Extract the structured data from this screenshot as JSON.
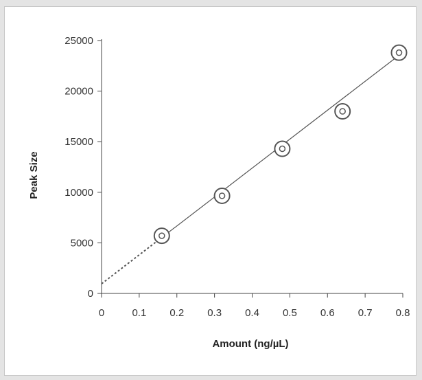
{
  "chart_data": {
    "type": "scatter",
    "title": "",
    "xlabel": "Amount (ng/µL)",
    "ylabel": "Peak Size",
    "xlim": [
      0,
      0.8
    ],
    "ylim": [
      0,
      25000
    ],
    "x_ticks": [
      "0",
      "0.1",
      "0.2",
      "0.3",
      "0.4",
      "0.5",
      "0.6",
      "0.7",
      "0.8"
    ],
    "y_ticks": [
      "0",
      "5000",
      "10000",
      "15000",
      "20000",
      "25000"
    ],
    "grid": false,
    "legend": "none",
    "series": [
      {
        "points": [
          {
            "x": 0.16,
            "y": 5700
          },
          {
            "x": 0.32,
            "y": 9650
          },
          {
            "x": 0.48,
            "y": 14300
          },
          {
            "x": 0.64,
            "y": 18000
          },
          {
            "x": 0.79,
            "y": 23800
          }
        ]
      }
    ],
    "fit_line": {
      "intercept": 950,
      "slope": 28600,
      "x_range": [
        0,
        0.8
      ],
      "dashed_range": [
        0,
        0.16
      ]
    },
    "colors": {
      "axis": "#444444",
      "marker": "#555555",
      "fit": "#555555"
    }
  }
}
